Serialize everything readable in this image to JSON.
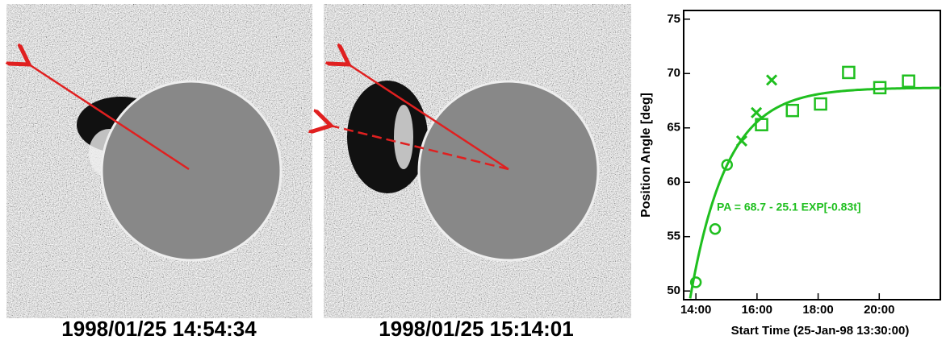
{
  "images": [
    {
      "caption": "1998/01/25 14:54:34"
    },
    {
      "caption": "1998/01/25 15:14:01"
    }
  ],
  "chart_data": {
    "type": "scatter",
    "xlabel": "Start Time (25-Jan-98 13:30:00)",
    "ylabel": "Position Angle [deg]",
    "annotation": "PA = 68.7 - 25.1 EXP[-0.83t]",
    "xlim": [
      13.6,
      22.0
    ],
    "ylim": [
      49.2,
      75.8
    ],
    "xticks": [
      {
        "value": 14,
        "label": "14:00"
      },
      {
        "value": 16,
        "label": "16:00"
      },
      {
        "value": 18,
        "label": "18:00"
      },
      {
        "value": 20,
        "label": "20:00"
      }
    ],
    "yticks": [
      50,
      55,
      60,
      65,
      70,
      75
    ],
    "series": [
      {
        "marker": "circle",
        "color": "#1fbf1f",
        "x": [
          14.0,
          14.63,
          15.02
        ],
        "values": [
          50.8,
          55.7,
          61.6
        ]
      },
      {
        "marker": "cross",
        "color": "#1fbf1f",
        "x": [
          15.5,
          15.98,
          16.48
        ],
        "values": [
          63.8,
          66.4,
          69.4
        ]
      },
      {
        "marker": "square",
        "color": "#1fbf1f",
        "x": [
          16.15,
          17.16,
          18.08,
          19.0,
          20.02,
          20.96
        ],
        "values": [
          65.3,
          66.6,
          67.2,
          70.1,
          68.7,
          69.3
        ]
      }
    ],
    "fit": {
      "color": "#1fbf1f",
      "a": 68.7,
      "b": 25.1,
      "k": 0.83,
      "t0": 13.5
    }
  }
}
